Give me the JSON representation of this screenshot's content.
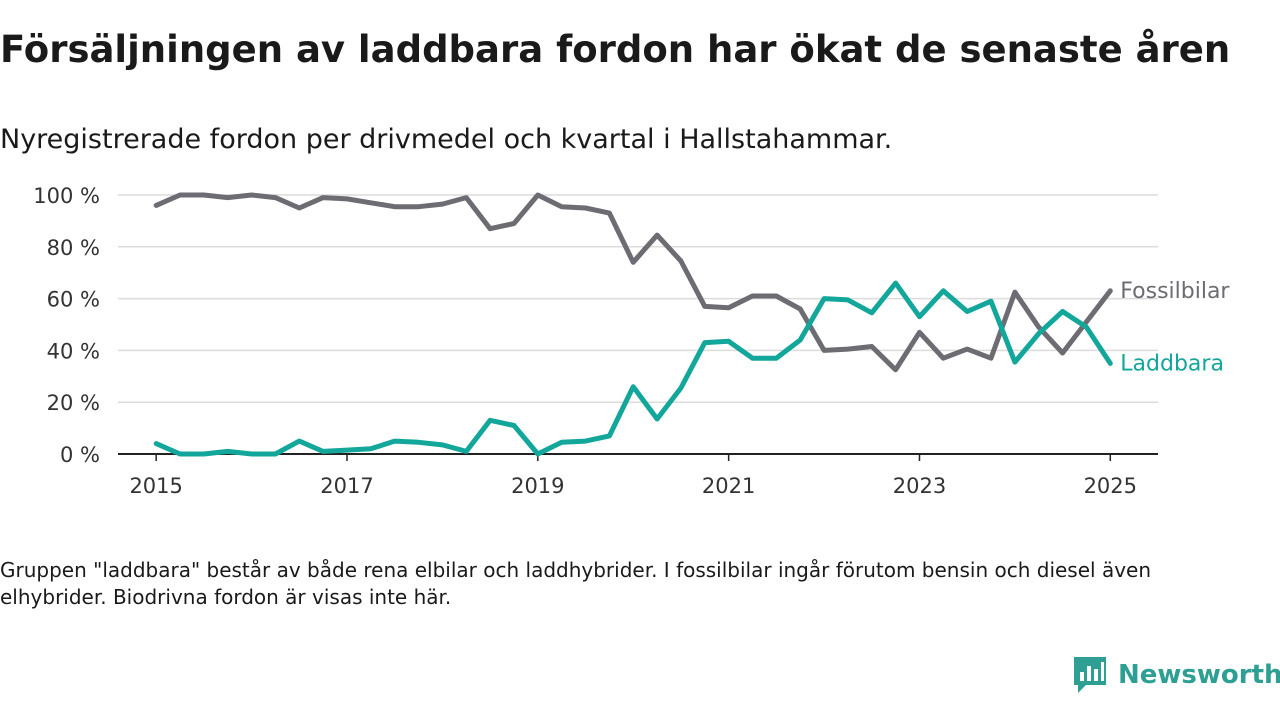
{
  "header": {
    "title": "Försäljningen av laddbara fordon har ökat de senaste åren",
    "subtitle": "Nyregistrerade fordon per drivmedel och kvartal i Hallstahammar."
  },
  "footer": {
    "note": "Gruppen \"laddbara\" består av både rena elbilar och laddhybrider. I fossilbilar ingår förutom bensin och diesel även elhybrider. Biodrivna fordon är visas inte här.",
    "brand": "Newsworthy",
    "brand_icon": "newsworthy-logo-icon"
  },
  "colors": {
    "fossil": "#6d6c73",
    "laddbara": "#13a69a",
    "grid": "#dcdcdc",
    "axis": "#222222",
    "brand": "#2d9f93"
  },
  "chart_data": {
    "type": "line",
    "x": [
      2015.0,
      2015.25,
      2015.5,
      2015.75,
      2016.0,
      2016.25,
      2016.5,
      2016.75,
      2017.0,
      2017.25,
      2017.5,
      2017.75,
      2018.0,
      2018.25,
      2018.5,
      2018.75,
      2019.0,
      2019.25,
      2019.5,
      2019.75,
      2020.0,
      2020.25,
      2020.5,
      2020.75,
      2021.0,
      2021.25,
      2021.5,
      2021.75,
      2022.0,
      2022.25,
      2022.5,
      2022.75,
      2023.0,
      2023.25,
      2023.5,
      2023.75,
      2024.0,
      2024.25,
      2024.5,
      2024.75,
      2025.0
    ],
    "series": [
      {
        "name": "Fossilbilar",
        "color": "#6d6c73",
        "values": [
          96,
          100,
          100,
          99,
          100,
          99,
          95,
          99,
          98.5,
          97,
          95.5,
          95.5,
          96.5,
          99,
          87,
          89,
          100,
          95.5,
          95,
          93,
          74,
          84.5,
          74.5,
          57,
          56.5,
          61,
          61,
          56,
          40,
          40.5,
          41.5,
          32.5,
          47,
          37,
          40.5,
          37,
          62.5,
          49,
          39,
          51,
          63
        ]
      },
      {
        "name": "Laddbara",
        "color": "#13a69a",
        "values": [
          4,
          0,
          0,
          1,
          0,
          0,
          5,
          1,
          1.5,
          2,
          5,
          4.5,
          3.5,
          1,
          13,
          11,
          0,
          4.5,
          5,
          7,
          26,
          13.5,
          25.5,
          43,
          43.5,
          37,
          37,
          44,
          60,
          59.5,
          54.5,
          66,
          53,
          63,
          55,
          59,
          35.5,
          46.5,
          55,
          49,
          35
        ]
      }
    ],
    "xticks": [
      "2015",
      "2017",
      "2019",
      "2021",
      "2023",
      "2025"
    ],
    "xtick_values": [
      2015,
      2017,
      2019,
      2021,
      2023,
      2025
    ],
    "yticks": [
      "0 %",
      "20 %",
      "40 %",
      "60 %",
      "80 %",
      "100 %"
    ],
    "ytick_values": [
      0,
      20,
      40,
      60,
      80,
      100
    ],
    "xlim": [
      2014.6,
      2025.5
    ],
    "ylim": [
      0,
      100
    ],
    "grid": "horizontal",
    "legend": "direct labels at line ends (right)"
  }
}
